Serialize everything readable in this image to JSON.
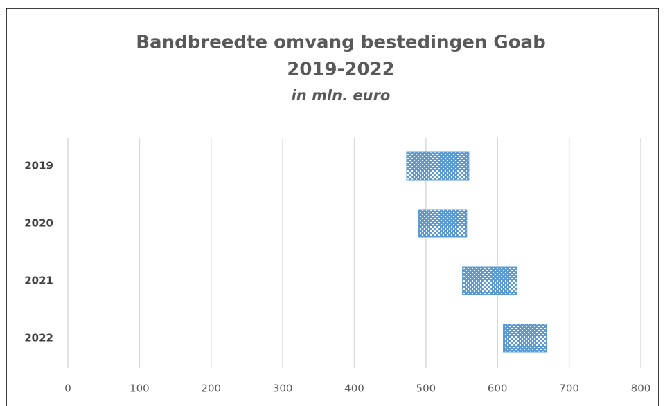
{
  "chart_data": {
    "type": "range-bar",
    "title": "Bandbreedte omvang bestedingen Goab",
    "title_line2": "2019-2022",
    "subtitle": "in mln. euro",
    "categories": [
      "2019",
      "2020",
      "2021",
      "2022"
    ],
    "low": [
      473,
      490,
      551,
      608
    ],
    "high": [
      560,
      557,
      627,
      668
    ],
    "color": "#5b9bd5",
    "xlim": [
      0,
      800
    ],
    "xticks": [
      0,
      100,
      200,
      300,
      400,
      500,
      600,
      700,
      800
    ],
    "grid": true
  }
}
